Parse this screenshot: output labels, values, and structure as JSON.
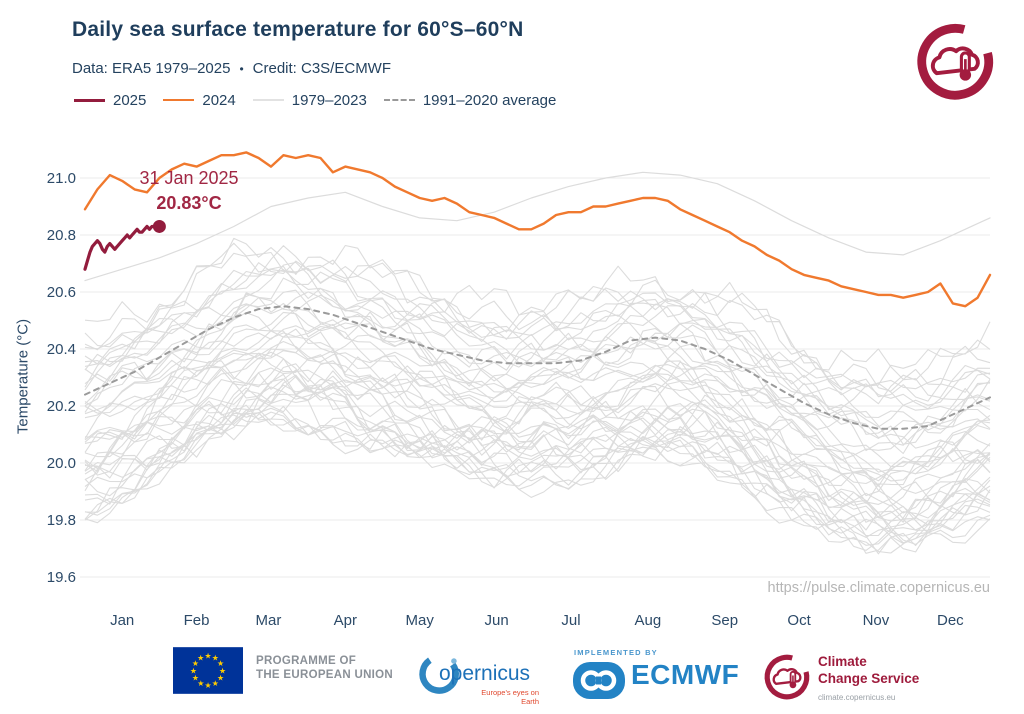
{
  "header": {
    "title": "Daily sea surface temperature for 60°S–60°N",
    "data_label": "Data: ERA5 1979–2025",
    "separator": "•",
    "credit_label": "Credit: C3S/ECMWF"
  },
  "legend": {
    "items": [
      {
        "label": "2025",
        "color": "#931c3d"
      },
      {
        "label": "2024",
        "color": "#f0792e"
      },
      {
        "label": "1979–2023",
        "color": "#e2e2e2"
      },
      {
        "label": "1991–2020 average",
        "color": "#999999"
      }
    ]
  },
  "colors": {
    "accent_2025": "#931c3d",
    "accent_2024": "#f0792e",
    "background_lines": "#dcdcdc",
    "average_line": "#9b9b9b",
    "grid": "#ebebeb",
    "title_text": "#1f3e5c",
    "axis_text": "#2c4a68",
    "annotation_text": "#a12744",
    "watermark_text": "#b6b6b6",
    "brand_crimson": "#a31c3f"
  },
  "chart_data": {
    "type": "line",
    "title": "Daily sea surface temperature for 60°S–60°N",
    "subtitle": "Data: ERA5 1979–2025 • Credit: C3S/ECMWF",
    "xlabel": "",
    "ylabel": "Temperature (°C)",
    "ylim": [
      19.55,
      21.12
    ],
    "yticks": [
      19.6,
      19.8,
      20.0,
      20.2,
      20.4,
      20.6,
      20.8,
      21.0
    ],
    "xtick_labels": [
      "Jan",
      "Feb",
      "Mar",
      "Apr",
      "May",
      "Jun",
      "Jul",
      "Aug",
      "Sep",
      "Oct",
      "Nov",
      "Dec"
    ],
    "xtick_middays": [
      15,
      45,
      74,
      105,
      135,
      166,
      196,
      227,
      258,
      288,
      319,
      349
    ],
    "x_unit": "day_of_year",
    "grid": "horizontal",
    "legend_position": "top-left",
    "series": [
      {
        "name": "2025",
        "color": "#931c3d",
        "width": 3.2,
        "step_days": 1,
        "end_marker": true,
        "values": [
          20.68,
          20.71,
          20.74,
          20.76,
          20.77,
          20.78,
          20.77,
          20.75,
          20.74,
          20.76,
          20.77,
          20.76,
          20.75,
          20.76,
          20.77,
          20.78,
          20.79,
          20.8,
          20.79,
          20.8,
          20.81,
          20.82,
          20.81,
          20.81,
          20.82,
          20.83,
          20.82,
          20.83,
          20.83,
          20.83,
          20.83
        ]
      },
      {
        "name": "2024",
        "color": "#f0792e",
        "width": 2.4,
        "step_days": 5,
        "values": [
          20.89,
          20.96,
          21.01,
          20.99,
          20.96,
          20.95,
          21.0,
          21.03,
          21.05,
          21.04,
          21.06,
          21.08,
          21.08,
          21.09,
          21.07,
          21.04,
          21.08,
          21.07,
          21.08,
          21.07,
          21.02,
          21.04,
          21.03,
          21.02,
          21.0,
          20.97,
          20.95,
          20.93,
          20.92,
          20.93,
          20.91,
          20.88,
          20.87,
          20.86,
          20.84,
          20.82,
          20.82,
          20.84,
          20.87,
          20.88,
          20.88,
          20.9,
          20.9,
          20.91,
          20.92,
          20.93,
          20.93,
          20.92,
          20.89,
          20.87,
          20.85,
          20.83,
          20.81,
          20.78,
          20.76,
          20.73,
          20.71,
          20.68,
          20.66,
          20.65,
          20.64,
          20.62,
          20.61,
          20.6,
          20.59,
          20.59,
          20.58,
          20.59,
          20.6,
          20.63,
          20.56,
          20.55,
          20.58,
          20.66
        ]
      },
      {
        "name": "1991–2020 average",
        "color": "#9b9b9b",
        "width": 2,
        "dash": "5 5",
        "step_days": 10,
        "values": [
          20.24,
          20.28,
          20.32,
          20.37,
          20.42,
          20.47,
          20.51,
          20.54,
          20.55,
          20.54,
          20.52,
          20.49,
          20.46,
          20.43,
          20.4,
          20.38,
          20.36,
          20.35,
          20.35,
          20.35,
          20.36,
          20.39,
          20.43,
          20.44,
          20.43,
          20.4,
          20.36,
          20.31,
          20.26,
          20.21,
          20.17,
          20.14,
          20.12,
          20.12,
          20.13,
          20.17,
          20.21,
          20.23
        ]
      },
      {
        "name": "2023 (top of 1979–2023 band)",
        "color": "#dcdcdc",
        "width": 1.2,
        "step_days": 15,
        "values": [
          20.64,
          20.68,
          20.72,
          20.77,
          20.83,
          20.9,
          20.93,
          20.95,
          20.9,
          20.86,
          20.85,
          20.88,
          20.93,
          20.97,
          21.0,
          21.02,
          21.01,
          20.98,
          20.92,
          20.85,
          20.79,
          20.74,
          20.73,
          20.78,
          20.84,
          20.86
        ]
      }
    ],
    "background_band": {
      "label": "1979–2023",
      "count": 44,
      "color": "#dcdcdc",
      "seed": 11,
      "offset_min": -0.4,
      "offset_max": 0.2,
      "skew": 1.35,
      "wiggle_amp": 0.045
    },
    "annotation": {
      "date": "31 Jan 2025",
      "value": "20.83°C",
      "day": 30,
      "temp": 20.83
    }
  },
  "watermark": {
    "url_text": "https://pulse.climate.copernicus.eu"
  },
  "footer": {
    "eu": {
      "line1": "PROGRAMME OF",
      "line2": "THE EUROPEAN UNION"
    },
    "copernicus": {
      "name": "opernicus",
      "tagline": "Europe's eyes on Earth"
    },
    "ecmwf": {
      "implemented_by": "IMPLEMENTED BY",
      "name": "ECMWF"
    },
    "ccs": {
      "line1": "Climate",
      "line2": "Change Service",
      "url": "climate.copernicus.eu"
    }
  }
}
